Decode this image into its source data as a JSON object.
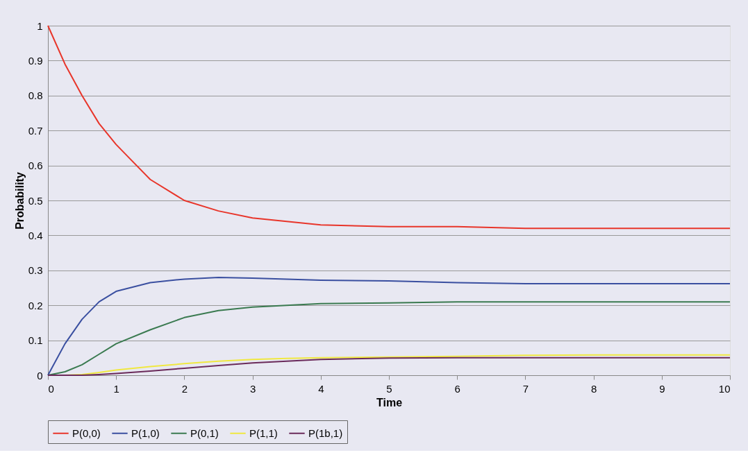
{
  "chart_data": {
    "type": "line",
    "xlabel": "Time",
    "ylabel": "Probability",
    "x": [
      0,
      0.25,
      0.5,
      0.75,
      1,
      1.5,
      2,
      2.5,
      3,
      3.5,
      4,
      5,
      6,
      7,
      8,
      9,
      10
    ],
    "series": [
      {
        "name": "P(0,0)",
        "color": "#e8352a",
        "values": [
          1,
          0.89,
          0.8,
          0.72,
          0.66,
          0.56,
          0.5,
          0.47,
          0.45,
          0.44,
          0.43,
          0.425,
          0.425,
          0.42,
          0.42,
          0.42,
          0.42
        ]
      },
      {
        "name": "P(1,0)",
        "color": "#3a4fa0",
        "values": [
          0,
          0.09,
          0.16,
          0.21,
          0.24,
          0.265,
          0.275,
          0.28,
          0.278,
          0.275,
          0.272,
          0.27,
          0.265,
          0.262,
          0.262,
          0.262,
          0.262
        ]
      },
      {
        "name": "P(0,1)",
        "color": "#3a7a50",
        "values": [
          0,
          0.01,
          0.03,
          0.06,
          0.09,
          0.13,
          0.165,
          0.185,
          0.195,
          0.2,
          0.205,
          0.207,
          0.21,
          0.21,
          0.21,
          0.21,
          0.21
        ]
      },
      {
        "name": "P(1,1)",
        "color": "#f0e840",
        "values": [
          0,
          0,
          0.002,
          0.008,
          0.015,
          0.025,
          0.033,
          0.04,
          0.045,
          0.048,
          0.05,
          0.052,
          0.054,
          0.057,
          0.058,
          0.058,
          0.058
        ]
      },
      {
        "name": "P(1b,1)",
        "color": "#6a2a5a",
        "values": [
          0,
          0,
          0,
          0.002,
          0.005,
          0.012,
          0.02,
          0.028,
          0.035,
          0.04,
          0.045,
          0.049,
          0.05,
          0.05,
          0.05,
          0.05,
          0.05
        ]
      }
    ],
    "xlim": [
      0,
      10
    ],
    "xticks": [
      0,
      1,
      2,
      3,
      4,
      5,
      6,
      7,
      8,
      9,
      10
    ],
    "ylim": [
      0,
      1
    ],
    "yticks": [
      0,
      0.1,
      0.2,
      0.3,
      0.4,
      0.5,
      0.6,
      0.7,
      0.8,
      0.9,
      1
    ],
    "grid": "y",
    "legend": "bottom",
    "line_style": "solid",
    "marker": "none"
  }
}
